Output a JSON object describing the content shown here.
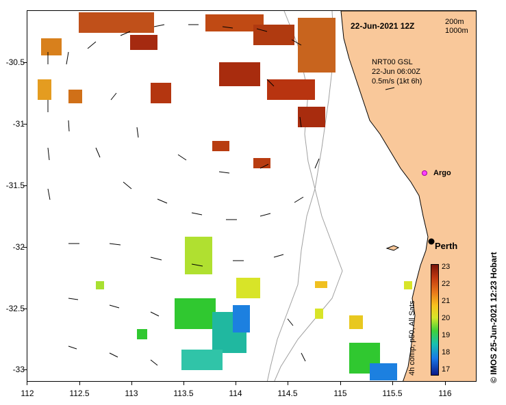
{
  "header": {
    "date_label": "22-Jun-2021 12Z",
    "isobath_200": "200m",
    "isobath_1000": "1000m"
  },
  "current_info": {
    "line1": "NRT00 GSL",
    "line2": "22-Jun 06:00Z",
    "line3": "0.5m/s (1kt 6h)"
  },
  "markers": {
    "argo": "Argo",
    "perth": "Perth"
  },
  "axes": {
    "y_ticks": [
      "-30.5",
      "-31",
      "-31.5",
      "-32",
      "-32.5",
      "-33"
    ],
    "x_ticks": [
      "112",
      "112.5",
      "113",
      "113.5",
      "114",
      "114.5",
      "115",
      "115.5",
      "116"
    ]
  },
  "colorbar": {
    "title": "4h comp, p50, All Sats",
    "ticks": [
      "23",
      "22",
      "21",
      "20",
      "19",
      "18",
      "17"
    ],
    "min": 17,
    "max": 23
  },
  "credit": "© IMOS 25-Jun-2021 12:23 Hobart",
  "colors": {
    "land": "#f9c89a",
    "coast": "#000000",
    "isobath": "#a0a0a0"
  }
}
